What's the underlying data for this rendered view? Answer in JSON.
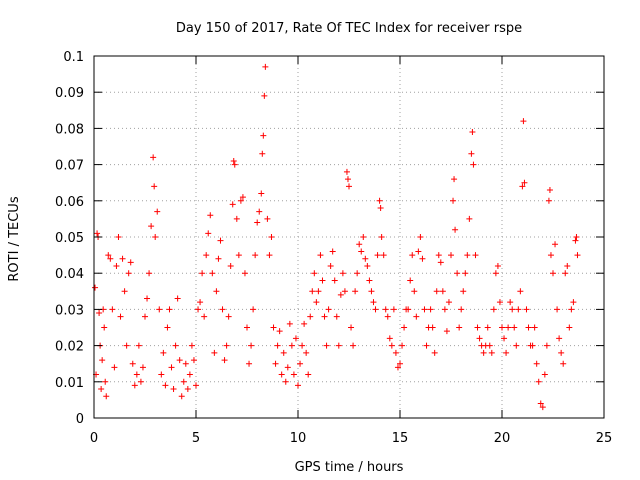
{
  "chart_data": {
    "type": "scatter",
    "title": "Day 150 of 2017, Rate Of TEC Index for receiver rspe",
    "xlabel": "GPS time / hours",
    "ylabel": "ROTI / TECUs",
    "xlim": [
      0,
      25
    ],
    "ylim": [
      0,
      0.1
    ],
    "grid": true,
    "marker": "plus",
    "color": "#ff0000",
    "x_ticks": [
      "0",
      "5",
      "10",
      "15",
      "20",
      "25"
    ],
    "y_ticks": [
      "0",
      "0.01",
      "0.02",
      "0.03",
      "0.04",
      "0.05",
      "0.06",
      "0.07",
      "0.08",
      "0.09",
      "0.1"
    ],
    "series": [
      {
        "name": "ROTI",
        "points": [
          [
            0.05,
            0.036
          ],
          [
            0.1,
            0.012
          ],
          [
            0.15,
            0.051
          ],
          [
            0.2,
            0.05
          ],
          [
            0.25,
            0.029
          ],
          [
            0.3,
            0.02
          ],
          [
            0.35,
            0.008
          ],
          [
            0.4,
            0.016
          ],
          [
            0.45,
            0.03
          ],
          [
            0.5,
            0.025
          ],
          [
            0.55,
            0.01
          ],
          [
            0.6,
            0.006
          ],
          [
            0.7,
            0.045
          ],
          [
            0.8,
            0.044
          ],
          [
            0.9,
            0.03
          ],
          [
            1.0,
            0.014
          ],
          [
            1.1,
            0.042
          ],
          [
            1.2,
            0.05
          ],
          [
            1.3,
            0.028
          ],
          [
            1.4,
            0.044
          ],
          [
            1.5,
            0.035
          ],
          [
            1.6,
            0.02
          ],
          [
            1.7,
            0.04
          ],
          [
            1.8,
            0.043
          ],
          [
            1.9,
            0.015
          ],
          [
            2.0,
            0.009
          ],
          [
            2.1,
            0.012
          ],
          [
            2.2,
            0.02
          ],
          [
            2.3,
            0.01
          ],
          [
            2.4,
            0.014
          ],
          [
            2.5,
            0.028
          ],
          [
            2.6,
            0.033
          ],
          [
            2.7,
            0.04
          ],
          [
            2.8,
            0.053
          ],
          [
            2.9,
            0.072
          ],
          [
            2.95,
            0.064
          ],
          [
            3.0,
            0.05
          ],
          [
            3.1,
            0.057
          ],
          [
            3.2,
            0.03
          ],
          [
            3.3,
            0.012
          ],
          [
            3.4,
            0.018
          ],
          [
            3.5,
            0.009
          ],
          [
            3.6,
            0.025
          ],
          [
            3.7,
            0.03
          ],
          [
            3.8,
            0.014
          ],
          [
            3.9,
            0.008
          ],
          [
            4.0,
            0.02
          ],
          [
            4.1,
            0.033
          ],
          [
            4.2,
            0.016
          ],
          [
            4.3,
            0.006
          ],
          [
            4.4,
            0.01
          ],
          [
            4.5,
            0.015
          ],
          [
            4.6,
            0.008
          ],
          [
            4.7,
            0.012
          ],
          [
            4.8,
            0.02
          ],
          [
            4.9,
            0.016
          ],
          [
            5.0,
            0.009
          ],
          [
            5.1,
            0.03
          ],
          [
            5.2,
            0.032
          ],
          [
            5.3,
            0.04
          ],
          [
            5.4,
            0.028
          ],
          [
            5.5,
            0.045
          ],
          [
            5.6,
            0.051
          ],
          [
            5.7,
            0.056
          ],
          [
            5.8,
            0.04
          ],
          [
            5.9,
            0.018
          ],
          [
            6.0,
            0.035
          ],
          [
            6.1,
            0.044
          ],
          [
            6.2,
            0.049
          ],
          [
            6.3,
            0.03
          ],
          [
            6.4,
            0.016
          ],
          [
            6.5,
            0.02
          ],
          [
            6.6,
            0.028
          ],
          [
            6.7,
            0.042
          ],
          [
            6.8,
            0.059
          ],
          [
            6.85,
            0.071
          ],
          [
            6.9,
            0.07
          ],
          [
            7.0,
            0.055
          ],
          [
            7.1,
            0.045
          ],
          [
            7.2,
            0.06
          ],
          [
            7.3,
            0.061
          ],
          [
            7.4,
            0.04
          ],
          [
            7.5,
            0.025
          ],
          [
            7.6,
            0.015
          ],
          [
            7.7,
            0.02
          ],
          [
            7.8,
            0.03
          ],
          [
            7.9,
            0.045
          ],
          [
            8.0,
            0.054
          ],
          [
            8.1,
            0.057
          ],
          [
            8.2,
            0.062
          ],
          [
            8.25,
            0.073
          ],
          [
            8.3,
            0.078
          ],
          [
            8.35,
            0.089
          ],
          [
            8.4,
            0.097
          ],
          [
            8.5,
            0.055
          ],
          [
            8.6,
            0.045
          ],
          [
            8.7,
            0.05
          ],
          [
            8.8,
            0.025
          ],
          [
            8.9,
            0.015
          ],
          [
            9.0,
            0.02
          ],
          [
            9.1,
            0.024
          ],
          [
            9.2,
            0.012
          ],
          [
            9.3,
            0.018
          ],
          [
            9.4,
            0.01
          ],
          [
            9.5,
            0.014
          ],
          [
            9.6,
            0.026
          ],
          [
            9.7,
            0.02
          ],
          [
            9.8,
            0.012
          ],
          [
            9.9,
            0.022
          ],
          [
            10.0,
            0.009
          ],
          [
            10.1,
            0.015
          ],
          [
            10.2,
            0.02
          ],
          [
            10.3,
            0.026
          ],
          [
            10.4,
            0.018
          ],
          [
            10.5,
            0.012
          ],
          [
            10.6,
            0.028
          ],
          [
            10.7,
            0.035
          ],
          [
            10.8,
            0.04
          ],
          [
            10.9,
            0.032
          ],
          [
            11.0,
            0.035
          ],
          [
            11.1,
            0.045
          ],
          [
            11.2,
            0.038
          ],
          [
            11.3,
            0.028
          ],
          [
            11.4,
            0.02
          ],
          [
            11.5,
            0.03
          ],
          [
            11.6,
            0.042
          ],
          [
            11.7,
            0.046
          ],
          [
            11.8,
            0.038
          ],
          [
            11.9,
            0.028
          ],
          [
            12.0,
            0.02
          ],
          [
            12.1,
            0.034
          ],
          [
            12.2,
            0.04
          ],
          [
            12.3,
            0.035
          ],
          [
            12.4,
            0.068
          ],
          [
            12.45,
            0.066
          ],
          [
            12.5,
            0.064
          ],
          [
            12.6,
            0.025
          ],
          [
            12.7,
            0.02
          ],
          [
            12.8,
            0.035
          ],
          [
            12.9,
            0.04
          ],
          [
            13.0,
            0.048
          ],
          [
            13.1,
            0.046
          ],
          [
            13.2,
            0.05
          ],
          [
            13.3,
            0.044
          ],
          [
            13.4,
            0.042
          ],
          [
            13.5,
            0.038
          ],
          [
            13.6,
            0.035
          ],
          [
            13.7,
            0.032
          ],
          [
            13.8,
            0.03
          ],
          [
            13.9,
            0.045
          ],
          [
            14.0,
            0.06
          ],
          [
            14.05,
            0.058
          ],
          [
            14.1,
            0.05
          ],
          [
            14.2,
            0.045
          ],
          [
            14.3,
            0.03
          ],
          [
            14.4,
            0.028
          ],
          [
            14.5,
            0.022
          ],
          [
            14.6,
            0.02
          ],
          [
            14.7,
            0.03
          ],
          [
            14.8,
            0.018
          ],
          [
            14.9,
            0.014
          ],
          [
            15.0,
            0.015
          ],
          [
            15.1,
            0.02
          ],
          [
            15.2,
            0.025
          ],
          [
            15.3,
            0.03
          ],
          [
            15.4,
            0.03
          ],
          [
            15.5,
            0.038
          ],
          [
            15.6,
            0.045
          ],
          [
            15.7,
            0.035
          ],
          [
            15.8,
            0.028
          ],
          [
            15.9,
            0.046
          ],
          [
            16.0,
            0.05
          ],
          [
            16.1,
            0.044
          ],
          [
            16.2,
            0.03
          ],
          [
            16.3,
            0.02
          ],
          [
            16.4,
            0.025
          ],
          [
            16.5,
            0.03
          ],
          [
            16.6,
            0.025
          ],
          [
            16.7,
            0.018
          ],
          [
            16.8,
            0.035
          ],
          [
            16.9,
            0.045
          ],
          [
            17.0,
            0.043
          ],
          [
            17.1,
            0.035
          ],
          [
            17.2,
            0.03
          ],
          [
            17.3,
            0.024
          ],
          [
            17.4,
            0.032
          ],
          [
            17.5,
            0.045
          ],
          [
            17.6,
            0.06
          ],
          [
            17.65,
            0.066
          ],
          [
            17.7,
            0.052
          ],
          [
            17.8,
            0.04
          ],
          [
            17.9,
            0.025
          ],
          [
            18.0,
            0.03
          ],
          [
            18.1,
            0.035
          ],
          [
            18.2,
            0.04
          ],
          [
            18.3,
            0.045
          ],
          [
            18.4,
            0.055
          ],
          [
            18.5,
            0.073
          ],
          [
            18.55,
            0.079
          ],
          [
            18.6,
            0.07
          ],
          [
            18.7,
            0.045
          ],
          [
            18.8,
            0.025
          ],
          [
            18.9,
            0.022
          ],
          [
            19.0,
            0.02
          ],
          [
            19.1,
            0.018
          ],
          [
            19.2,
            0.02
          ],
          [
            19.3,
            0.025
          ],
          [
            19.4,
            0.02
          ],
          [
            19.5,
            0.018
          ],
          [
            19.6,
            0.03
          ],
          [
            19.7,
            0.04
          ],
          [
            19.8,
            0.042
          ],
          [
            19.9,
            0.032
          ],
          [
            20.0,
            0.025
          ],
          [
            20.1,
            0.022
          ],
          [
            20.2,
            0.018
          ],
          [
            20.3,
            0.025
          ],
          [
            20.4,
            0.032
          ],
          [
            20.5,
            0.03
          ],
          [
            20.6,
            0.025
          ],
          [
            20.7,
            0.02
          ],
          [
            20.8,
            0.03
          ],
          [
            20.9,
            0.035
          ],
          [
            21.0,
            0.064
          ],
          [
            21.05,
            0.082
          ],
          [
            21.1,
            0.065
          ],
          [
            21.2,
            0.03
          ],
          [
            21.3,
            0.025
          ],
          [
            21.4,
            0.02
          ],
          [
            21.5,
            0.02
          ],
          [
            21.6,
            0.025
          ],
          [
            21.7,
            0.015
          ],
          [
            21.8,
            0.01
          ],
          [
            21.9,
            0.004
          ],
          [
            22.0,
            0.003
          ],
          [
            22.1,
            0.012
          ],
          [
            22.2,
            0.02
          ],
          [
            22.3,
            0.06
          ],
          [
            22.35,
            0.063
          ],
          [
            22.4,
            0.045
          ],
          [
            22.5,
            0.04
          ],
          [
            22.6,
            0.048
          ],
          [
            22.7,
            0.03
          ],
          [
            22.8,
            0.022
          ],
          [
            22.9,
            0.018
          ],
          [
            23.0,
            0.015
          ],
          [
            23.1,
            0.04
          ],
          [
            23.2,
            0.042
          ],
          [
            23.3,
            0.025
          ],
          [
            23.4,
            0.03
          ],
          [
            23.5,
            0.032
          ],
          [
            23.6,
            0.049
          ],
          [
            23.65,
            0.05
          ],
          [
            23.7,
            0.045
          ]
        ]
      }
    ]
  }
}
